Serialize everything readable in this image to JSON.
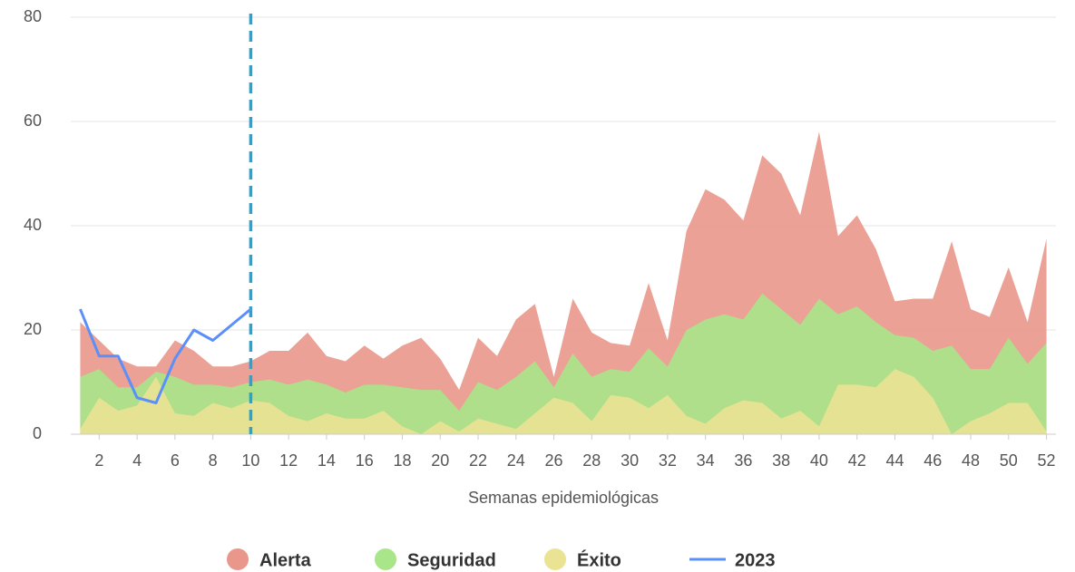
{
  "chart_data": {
    "type": "area",
    "x_label": "Semanas epidemiológicas",
    "x": [
      1,
      2,
      3,
      4,
      5,
      6,
      7,
      8,
      9,
      10,
      11,
      12,
      13,
      14,
      15,
      16,
      17,
      18,
      19,
      20,
      21,
      22,
      23,
      24,
      25,
      26,
      27,
      28,
      29,
      30,
      31,
      32,
      33,
      34,
      35,
      36,
      37,
      38,
      39,
      40,
      41,
      42,
      43,
      44,
      45,
      46,
      47,
      48,
      49,
      50,
      51,
      52
    ],
    "xlim": [
      0.5,
      52.5
    ],
    "xticks": [
      2,
      4,
      6,
      8,
      10,
      12,
      14,
      16,
      18,
      20,
      22,
      24,
      26,
      28,
      30,
      32,
      34,
      36,
      38,
      40,
      42,
      44,
      46,
      48,
      50,
      52
    ],
    "ylim": [
      0,
      80
    ],
    "yticks": [
      0,
      20,
      40,
      60,
      80
    ],
    "grid": true,
    "marker_x": 10,
    "series": [
      {
        "name": "Alerta",
        "color": "#e9978a",
        "kind": "area",
        "values": [
          21.5,
          18,
          14.5,
          13,
          13,
          18,
          16,
          13,
          13,
          14,
          16,
          16,
          19.5,
          15,
          14,
          17,
          14.5,
          17,
          18.5,
          14.5,
          8.5,
          18.5,
          15,
          22,
          25,
          11,
          26,
          19.5,
          17.5,
          17,
          29,
          18,
          39,
          47,
          45,
          41,
          53.5,
          50,
          42,
          58,
          38,
          42,
          35.5,
          25.5,
          26,
          26,
          37,
          24,
          22.5,
          32,
          21.5,
          37.5
        ]
      },
      {
        "name": "Seguridad",
        "color": "#a9e68a",
        "kind": "area",
        "values": [
          11,
          12.5,
          9,
          9,
          12,
          11,
          9.5,
          9.5,
          9,
          10,
          10.5,
          9.5,
          10.5,
          9.5,
          8,
          9.5,
          9.5,
          9,
          8.5,
          8.5,
          4.5,
          10,
          8.5,
          11,
          14,
          9,
          15.5,
          11,
          12.5,
          12,
          16.5,
          13,
          20,
          22,
          23,
          22,
          27,
          24,
          21,
          26,
          23,
          24.5,
          21.5,
          19,
          18.5,
          16,
          17,
          12.5,
          12.5,
          18.5,
          13.5,
          17.5
        ]
      },
      {
        "name": "Éxito",
        "color": "#ebe394",
        "kind": "area",
        "values": [
          1,
          7,
          4.5,
          5.5,
          11,
          4,
          3.5,
          6,
          5,
          6.5,
          6,
          3.5,
          2.5,
          4,
          3,
          3,
          4.5,
          1.5,
          0,
          2.5,
          0.5,
          3,
          2,
          1,
          4,
          7,
          6,
          2.5,
          7.5,
          7,
          5,
          7.5,
          3.5,
          2,
          5,
          6.5,
          6,
          3,
          4.5,
          1.5,
          9.5,
          9.5,
          9,
          12.5,
          11,
          7,
          0,
          2.5,
          4,
          6,
          6,
          0.5
        ]
      },
      {
        "name": "2023",
        "color": "#5b8ff9",
        "kind": "line",
        "values": [
          24,
          15,
          15,
          7,
          6,
          14.5,
          20,
          18,
          21,
          24,
          null,
          null,
          null,
          null,
          null,
          null,
          null,
          null,
          null,
          null,
          null,
          null,
          null,
          null,
          null,
          null,
          null,
          null,
          null,
          null,
          null,
          null,
          null,
          null,
          null,
          null,
          null,
          null,
          null,
          null,
          null,
          null,
          null,
          null,
          null,
          null,
          null,
          null,
          null,
          null,
          null,
          null
        ]
      }
    ]
  }
}
